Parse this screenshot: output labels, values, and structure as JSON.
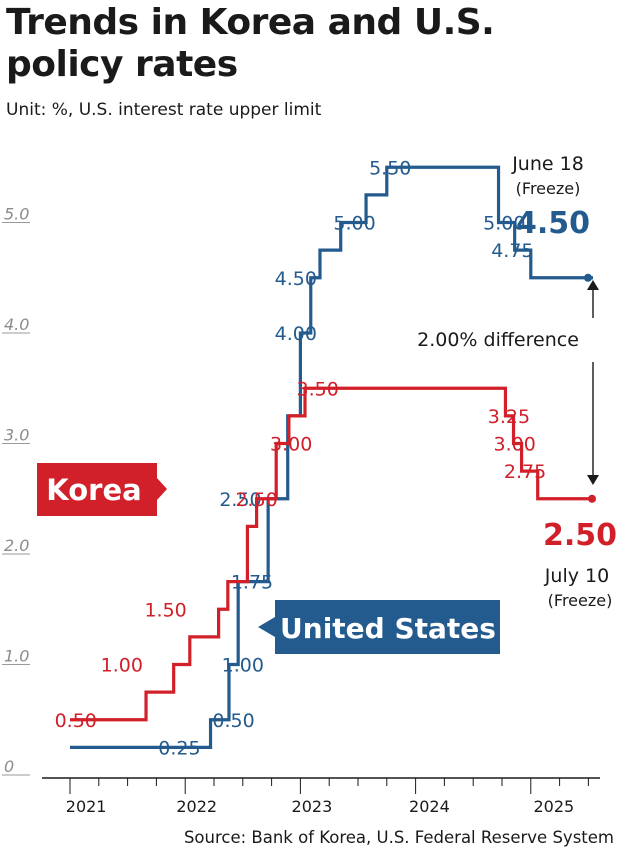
{
  "chart_data": {
    "type": "line",
    "step": true,
    "title": "Trends in Korea and U.S. policy rates",
    "subtitle": "Unit: %, U.S. interest rate upper limit",
    "source": "Source: Bank of Korea, U.S. Federal Reserve System",
    "y_ticks": [
      "0",
      "1.0",
      "2.0",
      "3.0",
      "4.0",
      "5.0"
    ],
    "x_ticks": [
      "2021",
      "2022",
      "2023",
      "2024",
      "2025"
    ],
    "ylim": [
      0,
      6
    ],
    "series": [
      {
        "name": "United States",
        "color": "#245b8f",
        "points": [
          [
            2021.0,
            0.25
          ],
          [
            2022.22,
            0.5
          ],
          [
            2022.38,
            1.0
          ],
          [
            2022.46,
            1.75
          ],
          [
            2022.72,
            2.5
          ],
          [
            2022.89,
            3.25
          ],
          [
            2023.0,
            4.0
          ],
          [
            2023.09,
            4.5
          ],
          [
            2023.17,
            4.75
          ],
          [
            2023.35,
            5.0
          ],
          [
            2023.57,
            5.25
          ],
          [
            2023.75,
            5.5
          ],
          [
            2024.72,
            5.0
          ],
          [
            2024.86,
            4.75
          ],
          [
            2025.0,
            4.5
          ],
          [
            2025.54,
            4.5
          ]
        ],
        "labels": [
          {
            "x": 2021.95,
            "y": 0.25,
            "text": "0.25"
          },
          {
            "x": 2022.42,
            "y": 0.5,
            "text": "0.50"
          },
          {
            "x": 2022.5,
            "y": 1.0,
            "text": "1.00"
          },
          {
            "x": 2022.58,
            "y": 1.75,
            "text": "1.75"
          },
          {
            "x": 2022.48,
            "y": 2.5,
            "text": "2.50"
          },
          {
            "x": 2022.96,
            "y": 4.0,
            "text": "4.00"
          },
          {
            "x": 2022.96,
            "y": 4.5,
            "text": "4.50"
          },
          {
            "x": 2023.47,
            "y": 5.0,
            "text": "5.00"
          },
          {
            "x": 2023.78,
            "y": 5.5,
            "text": "5.50"
          },
          {
            "x": 2024.77,
            "y": 5.0,
            "text": "5.00"
          },
          {
            "x": 2024.84,
            "y": 4.75,
            "text": "4.75"
          }
        ]
      },
      {
        "name": "Korea",
        "color": "#d1202a",
        "points": [
          [
            2021.0,
            0.5
          ],
          [
            2021.66,
            0.75
          ],
          [
            2021.9,
            1.0
          ],
          [
            2022.04,
            1.25
          ],
          [
            2022.29,
            1.5
          ],
          [
            2022.37,
            1.75
          ],
          [
            2022.54,
            2.25
          ],
          [
            2022.62,
            2.5
          ],
          [
            2022.79,
            3.0
          ],
          [
            2022.9,
            3.25
          ],
          [
            2023.04,
            3.5
          ],
          [
            2024.78,
            3.25
          ],
          [
            2024.85,
            3.0
          ],
          [
            2024.92,
            2.75
          ],
          [
            2025.06,
            2.5
          ],
          [
            2025.54,
            2.5
          ]
        ],
        "labels": [
          {
            "x": 2021.05,
            "y": 0.5,
            "text": "0.50"
          },
          {
            "x": 2021.45,
            "y": 1.0,
            "text": "1.00"
          },
          {
            "x": 2021.83,
            "y": 1.5,
            "text": "1.50"
          },
          {
            "x": 2022.62,
            "y": 2.5,
            "text": "2.50"
          },
          {
            "x": 2022.92,
            "y": 3.0,
            "text": "3.00"
          },
          {
            "x": 2023.15,
            "y": 3.5,
            "text": "3.50"
          },
          {
            "x": 2024.81,
            "y": 3.25,
            "text": "3.25"
          },
          {
            "x": 2024.86,
            "y": 3.0,
            "text": "3.00"
          },
          {
            "x": 2024.95,
            "y": 2.75,
            "text": "2.75"
          }
        ]
      }
    ],
    "annotations": {
      "us_date": "June 18",
      "us_freeze": "(Freeze)",
      "us_value": "4.50",
      "kr_value": "2.50",
      "kr_date": "July 10",
      "kr_freeze": "(Freeze)",
      "difference": "2.00% difference",
      "korea_tag": "Korea",
      "us_tag": "United States"
    }
  }
}
